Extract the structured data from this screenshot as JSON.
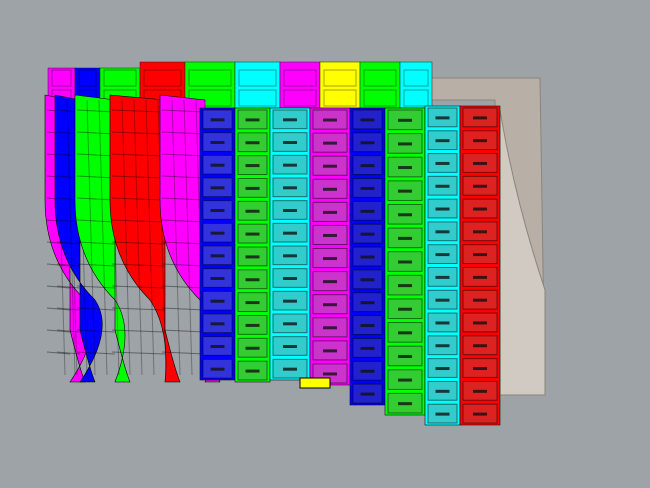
{
  "viewport": {
    "background": "#9ea3a8"
  },
  "hull": {
    "back_strips": [
      {
        "color": "#ff00ff"
      },
      {
        "color": "#0000ff"
      },
      {
        "color": "#00ff00"
      },
      {
        "color": "#ff0000"
      },
      {
        "color": "#00ff00"
      },
      {
        "color": "#00ffff"
      },
      {
        "color": "#ff00ff"
      },
      {
        "color": "#ffff00"
      },
      {
        "color": "#00ff00"
      },
      {
        "color": "#00ffff"
      }
    ],
    "side_strips": [
      {
        "color": "#ff00ff"
      },
      {
        "color": "#0000ff"
      },
      {
        "color": "#00ff00"
      },
      {
        "color": "#ff0000"
      },
      {
        "color": "#ff00ff"
      }
    ],
    "front_columns": [
      {
        "color": "#3333dd",
        "edge": "#0000ff"
      },
      {
        "color": "#33cc33",
        "edge": "#00ff00"
      },
      {
        "color": "#33cccc",
        "edge": "#00ffff"
      },
      {
        "color": "#cc33cc",
        "edge": "#ff00ff"
      },
      {
        "color": "#2222cc",
        "edge": "#0000ff"
      },
      {
        "color": "#33cc33",
        "edge": "#00ff00"
      },
      {
        "color": "#33cccc",
        "edge": "#00ffff"
      },
      {
        "color": "#dd2222",
        "edge": "#ff0000"
      }
    ],
    "structure_color": "#b8b0a6"
  }
}
